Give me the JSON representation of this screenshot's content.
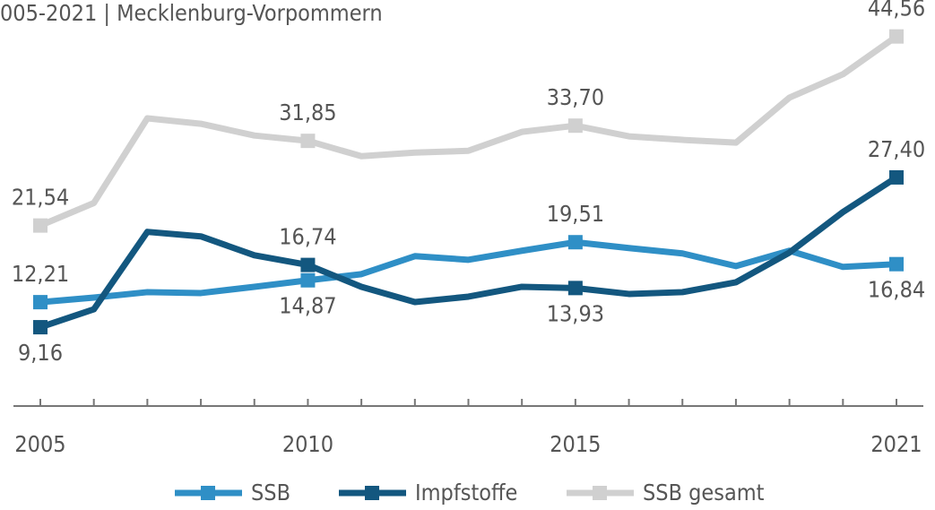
{
  "chart_data": {
    "type": "line",
    "title": "005-2021 | Mecklenburg-Vorpommern",
    "x": [
      2005,
      2006,
      2007,
      2008,
      2009,
      2010,
      2011,
      2012,
      2013,
      2014,
      2015,
      2016,
      2017,
      2018,
      2019,
      2020,
      2021
    ],
    "xlim": [
      2005,
      2021
    ],
    "xticks": [
      2005,
      2010,
      2015,
      2021
    ],
    "ylim": [
      0,
      49
    ],
    "legend": "bottom",
    "series": [
      {
        "name": "SSB",
        "color": "#2f8fc6",
        "values": [
          12.21,
          12.77,
          13.43,
          13.32,
          14.08,
          14.87,
          15.62,
          17.81,
          17.37,
          18.47,
          19.51,
          18.8,
          18.14,
          16.6,
          18.47,
          16.5,
          16.84
        ],
        "value_labels": [
          "12,21",
          null,
          null,
          null,
          null,
          "14,87",
          null,
          null,
          null,
          null,
          "19,51",
          null,
          null,
          null,
          null,
          null,
          "16,84"
        ]
      },
      {
        "name": "Impfstoffe",
        "color": "#13577f",
        "values": [
          9.16,
          11.34,
          20.77,
          20.22,
          17.92,
          16.74,
          14.08,
          12.22,
          12.88,
          14.08,
          13.93,
          13.21,
          13.43,
          14.63,
          18.25,
          23.18,
          27.4
        ],
        "value_labels": [
          "9,16",
          null,
          null,
          null,
          null,
          "16,74",
          null,
          null,
          null,
          null,
          "13,93",
          null,
          null,
          null,
          null,
          null,
          "27,40"
        ]
      },
      {
        "name": "SSB gesamt",
        "color": "#d0d0d0",
        "values": [
          21.54,
          24.28,
          34.59,
          33.93,
          32.5,
          31.85,
          29.98,
          30.42,
          30.64,
          32.94,
          33.7,
          32.4,
          31.97,
          31.63,
          37.11,
          39.96,
          44.56
        ],
        "value_labels": [
          "21,54",
          null,
          null,
          null,
          null,
          "31,85",
          null,
          null,
          null,
          null,
          "33,70",
          null,
          null,
          null,
          null,
          null,
          "44,56"
        ]
      }
    ]
  }
}
